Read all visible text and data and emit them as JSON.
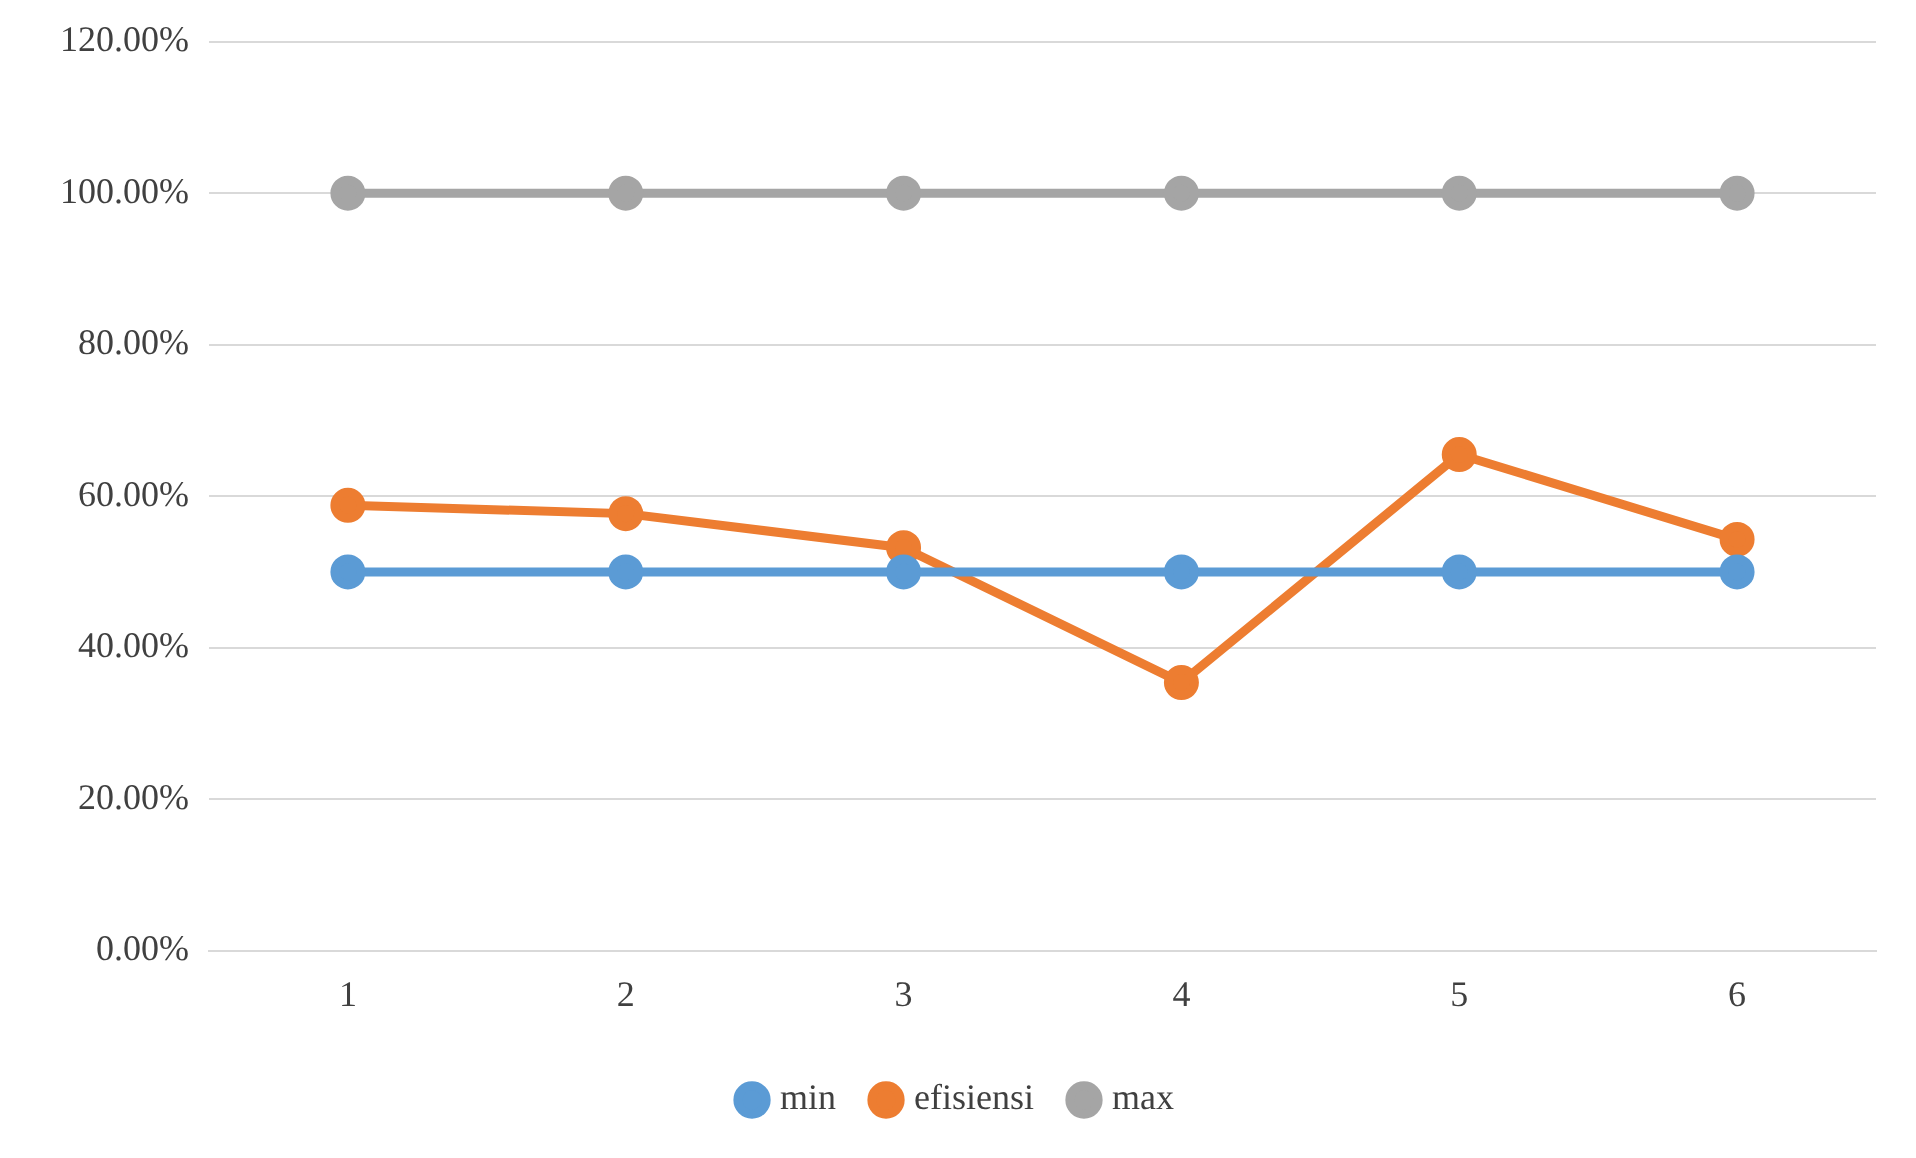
{
  "chart_data": {
    "type": "line",
    "categories": [
      "1",
      "2",
      "3",
      "4",
      "5",
      "6"
    ],
    "series": [
      {
        "name": "min",
        "color": "#5b9bd5",
        "values": [
          50,
          50,
          50,
          50,
          50,
          50
        ]
      },
      {
        "name": "efisiensi",
        "color": "#ed7d31",
        "values": [
          58.8,
          57.7,
          53.2,
          35.4,
          65.5,
          54.3
        ]
      },
      {
        "name": "max",
        "color": "#a5a5a5",
        "values": [
          100,
          100,
          100,
          100,
          100,
          100
        ]
      }
    ],
    "ylim": [
      0,
      120
    ],
    "yticks": [
      {
        "value": 0,
        "label": "0.00%"
      },
      {
        "value": 20,
        "label": "20.00%"
      },
      {
        "value": 40,
        "label": "40.00%"
      },
      {
        "value": 60,
        "label": "60.00%"
      },
      {
        "value": 80,
        "label": "80.00%"
      },
      {
        "value": 100,
        "label": "100.00%"
      },
      {
        "value": 120,
        "label": "120.00%"
      }
    ],
    "grid": "y",
    "legend": "bottom",
    "marker": "circle",
    "line_style": "solid"
  }
}
